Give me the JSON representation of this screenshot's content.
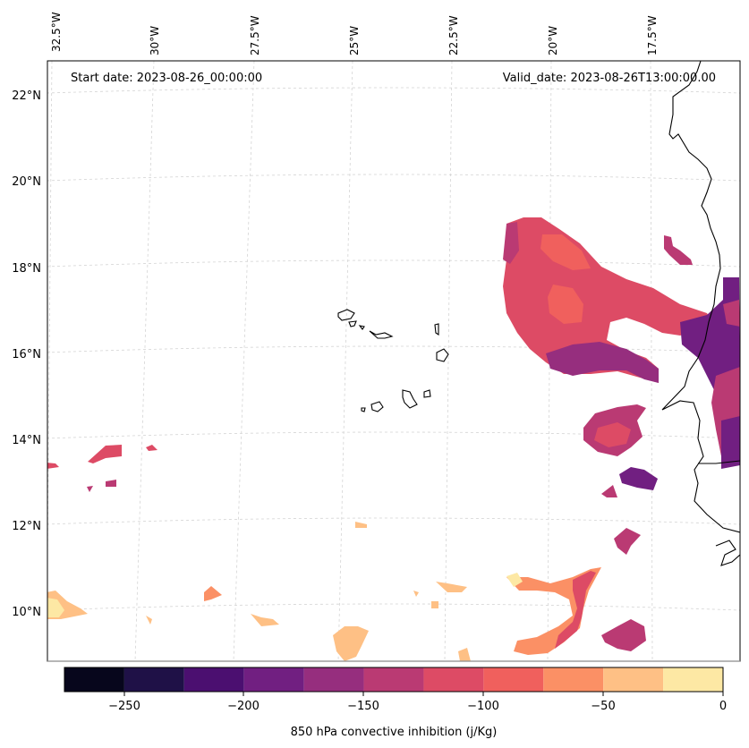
{
  "map": {
    "start_label": "Start date: 2023-08-26_00:00:00",
    "valid_label": "Valid_date: 2023-08-26T13:00:00.00",
    "lon_labels": [
      "32.5°W",
      "30°W",
      "27.5°W",
      "25°W",
      "22.5°W",
      "20°W",
      "17.5°W"
    ],
    "lat_labels": [
      "22°N",
      "20°N",
      "18°N",
      "16°N",
      "14°N",
      "12°N",
      "10°N"
    ],
    "gridlines": true,
    "coastline_color": "#000000"
  },
  "colorbar": {
    "label": "850 hPa convective inhibition (j/Kg)",
    "tick_labels": [
      "−250",
      "−200",
      "−150",
      "−100",
      "−50",
      "0"
    ],
    "bounds": [
      -275,
      -250,
      -225,
      -200,
      -175,
      -150,
      -125,
      -100,
      -75,
      -50,
      -25,
      0
    ],
    "colors": [
      "#07061c",
      "#1f1147",
      "#4b0f70",
      "#711f81",
      "#962e7e",
      "#ba3a73",
      "#dd4b65",
      "#f0605d",
      "#fb9065",
      "#fec085",
      "#fde8a4"
    ]
  }
}
